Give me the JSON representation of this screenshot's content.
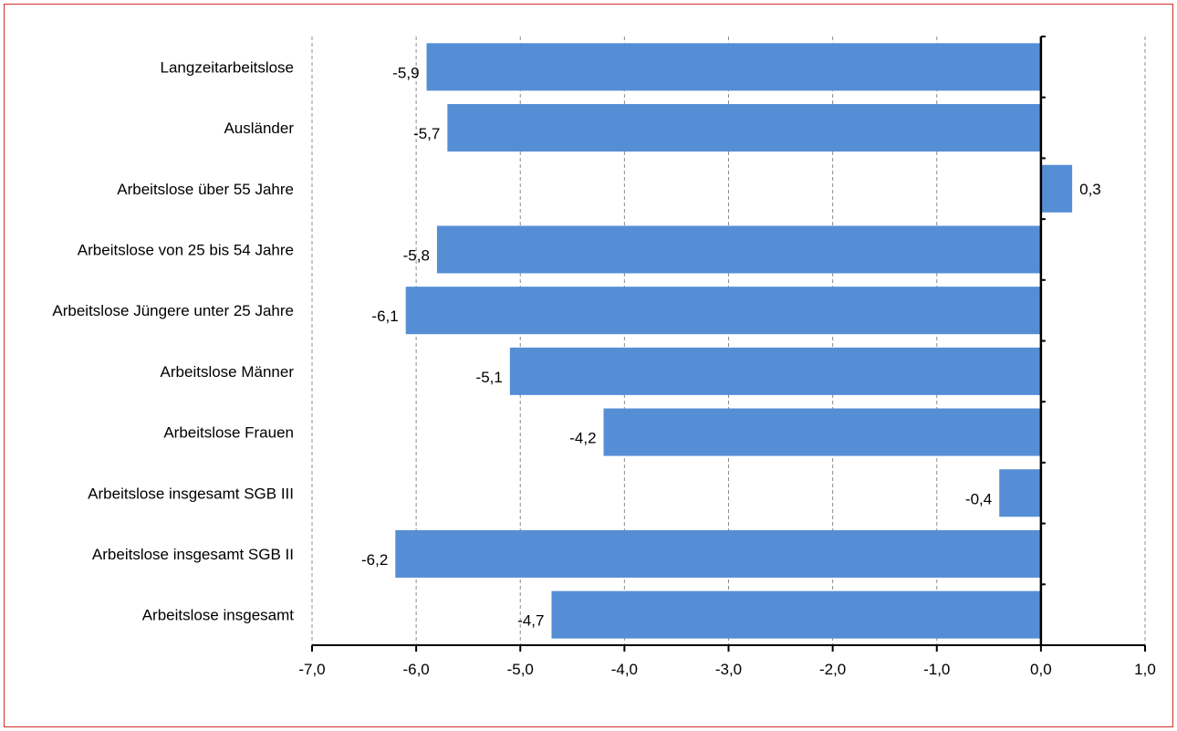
{
  "chart_data": {
    "type": "bar",
    "orientation": "horizontal",
    "title": "",
    "xlabel": "",
    "ylabel": "",
    "categories": [
      "Langzeitarbeitslose",
      "Ausländer",
      "Arbeitslose über 55 Jahre",
      "Arbeitslose von 25 bis 54 Jahre",
      "Arbeitslose Jüngere unter 25 Jahre",
      "Arbeitslose Männer",
      "Arbeitslose Frauen",
      "Arbeitslose insgesamt SGB III",
      "Arbeitslose insgesamt SGB II",
      "Arbeitslose insgesamt"
    ],
    "values": [
      -5.9,
      -5.7,
      0.3,
      -5.8,
      -6.1,
      -5.1,
      -4.2,
      -0.4,
      -6.2,
      -4.7
    ],
    "value_labels": [
      "-5,9",
      "-5,7",
      "0,3",
      "-5,8",
      "-6,1",
      "-5,1",
      "-4,2",
      "-0,4",
      "-6,2",
      "-4,7"
    ],
    "xlim": [
      -7,
      1
    ],
    "x_ticks": [
      -7,
      -6,
      -5,
      -4,
      -3,
      -2,
      -1,
      0,
      1
    ],
    "x_tick_labels": [
      "-7,0",
      "-6,0",
      "-5,0",
      "-4,0",
      "-3,0",
      "-2,0",
      "-1,0",
      "0,0",
      "1,0"
    ],
    "grid": "vertical dashed",
    "legend": "none",
    "bar_color": "#558ed5",
    "frame_color": "#d62b2b"
  }
}
